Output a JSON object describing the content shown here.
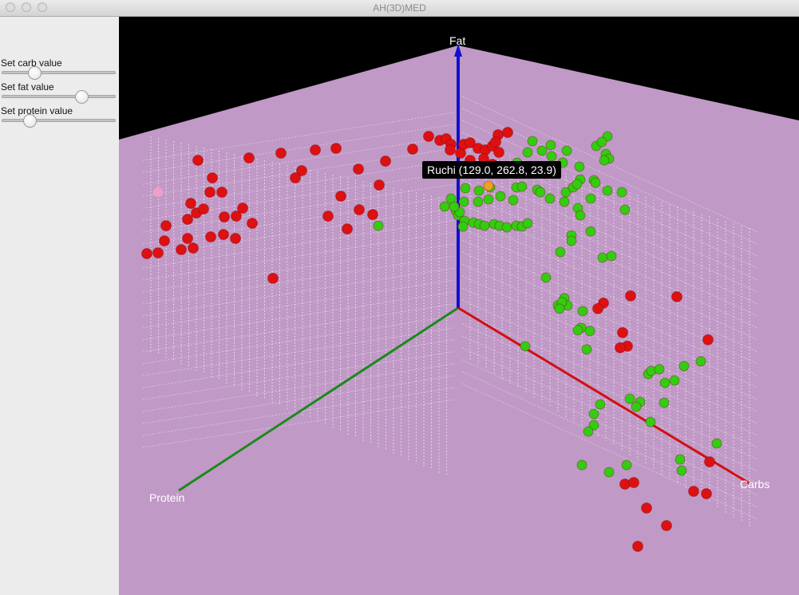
{
  "window": {
    "title": "AH(3D)MED"
  },
  "controls": {
    "carb_label": "Set carb value",
    "fat_label": "Set fat value",
    "protein_label": "Set protein value",
    "carb_level": 0.25,
    "fat_level": 0.72,
    "protein_level": 0.21
  },
  "plot": {
    "axes": {
      "fat": "Fat",
      "carbs": "Carbs",
      "protein": "Protein"
    },
    "tooltip": "Ruchi (129.0, 262.8, 23.9)",
    "colors": {
      "floor": "#c099c6",
      "background": "#000000",
      "fat_axis": "#1010d0",
      "carbs_axis": "#d01010",
      "protein_axis": "#1a8a1a",
      "red_point": "#dd1111",
      "green_point": "#33cc11",
      "highlight_point": "#f0a020"
    }
  }
}
